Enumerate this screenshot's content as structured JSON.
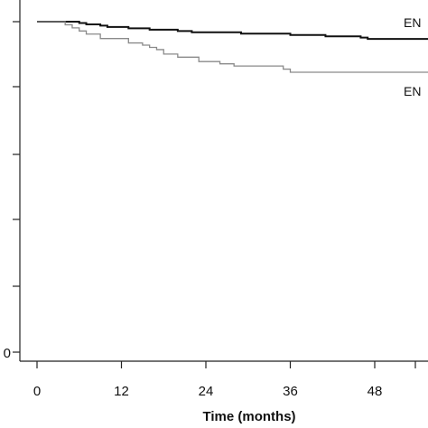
{
  "chart_data": {
    "type": "line",
    "title": "",
    "xlabel": "Time (months)",
    "ylabel": "",
    "xlim": [
      0,
      60
    ],
    "ylim": [
      0,
      1
    ],
    "x_ticks": [
      0,
      12,
      24,
      36,
      48
    ],
    "x_tick_labels": [
      "0",
      "12",
      "24",
      "36",
      "48"
    ],
    "y_tick_labels": [
      "0"
    ],
    "y_tick_count": 6,
    "grid": false,
    "series": [
      {
        "label": "EN",
        "color": "#111111",
        "step": true,
        "x": [
          0,
          6,
          7,
          9,
          10,
          13,
          16,
          20,
          22,
          29,
          36,
          41,
          46,
          47,
          60
        ],
        "y": [
          1.0,
          0.997,
          0.994,
          0.991,
          0.988,
          0.985,
          0.982,
          0.979,
          0.976,
          0.973,
          0.97,
          0.967,
          0.964,
          0.961,
          0.961
        ]
      },
      {
        "label": "EN",
        "color": "#8a8a8a",
        "step": true,
        "x": [
          0,
          4,
          5,
          6,
          7,
          9,
          13,
          15,
          16,
          17,
          18,
          20,
          23,
          26,
          28,
          35,
          36,
          60
        ],
        "y": [
          1.0,
          0.993,
          0.986,
          0.979,
          0.972,
          0.962,
          0.952,
          0.947,
          0.942,
          0.937,
          0.927,
          0.92,
          0.91,
          0.905,
          0.9,
          0.893,
          0.886,
          0.886
        ]
      }
    ]
  }
}
